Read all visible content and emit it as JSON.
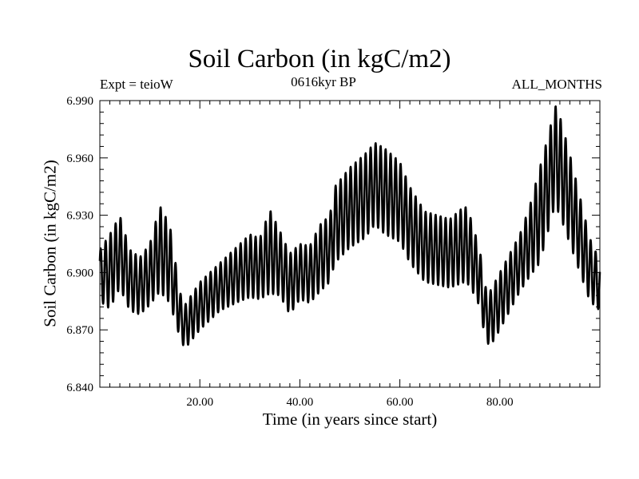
{
  "chart_data": {
    "type": "line",
    "title": "Soil Carbon (in kgC/m2)",
    "subtitle_left": "Expt = teioW",
    "subtitle_center": "0616kyr BP",
    "subtitle_right": "ALL_MONTHS",
    "xlabel": "Time (in years since start)",
    "ylabel": "Soil Carbon (in kgC/m2)",
    "xlim": [
      0,
      100
    ],
    "ylim": [
      6.84,
      6.99
    ],
    "xticks": [
      20,
      40,
      60,
      80
    ],
    "xtick_labels": [
      "20.00",
      "40.00",
      "60.00",
      "80.00"
    ],
    "yticks": [
      6.84,
      6.87,
      6.9,
      6.93,
      6.96,
      6.99
    ],
    "ytick_labels": [
      "6.840",
      "6.870",
      "6.900",
      "6.930",
      "6.960",
      "6.990"
    ],
    "series": [
      {
        "name": "Soil Carbon",
        "seasonal_cycle_years": 1,
        "envelope_x": [
          0,
          2,
          4,
          6,
          8,
          10,
          12,
          14,
          16,
          17,
          20,
          24,
          28,
          30,
          32,
          34,
          36,
          38,
          40,
          42,
          44,
          46,
          47,
          50,
          53,
          55,
          57,
          60,
          62,
          65,
          70,
          73,
          74,
          76,
          77,
          78,
          80,
          82,
          84,
          86,
          88,
          90,
          91,
          92,
          94,
          96,
          98,
          100
        ],
        "envelope_min": [
          6.885,
          6.881,
          6.892,
          6.88,
          6.878,
          6.883,
          6.89,
          6.884,
          6.866,
          6.86,
          6.87,
          6.88,
          6.885,
          6.887,
          6.886,
          6.889,
          6.888,
          6.878,
          6.886,
          6.884,
          6.89,
          6.895,
          6.905,
          6.913,
          6.918,
          6.925,
          6.92,
          6.916,
          6.905,
          6.895,
          6.892,
          6.895,
          6.893,
          6.882,
          6.866,
          6.861,
          6.87,
          6.88,
          6.89,
          6.898,
          6.905,
          6.925,
          6.935,
          6.93,
          6.915,
          6.9,
          6.885,
          6.88
        ],
        "envelope_max": [
          6.912,
          6.92,
          6.93,
          6.912,
          6.908,
          6.915,
          6.935,
          6.925,
          6.89,
          6.883,
          6.895,
          6.905,
          6.915,
          6.92,
          6.918,
          6.933,
          6.922,
          6.91,
          6.915,
          6.914,
          6.925,
          6.93,
          6.945,
          6.955,
          6.962,
          6.968,
          6.965,
          6.958,
          6.945,
          6.932,
          6.928,
          6.935,
          6.93,
          6.912,
          6.893,
          6.89,
          6.9,
          6.91,
          6.92,
          6.935,
          6.955,
          6.975,
          6.988,
          6.982,
          6.962,
          6.94,
          6.918,
          6.906
        ]
      }
    ]
  }
}
